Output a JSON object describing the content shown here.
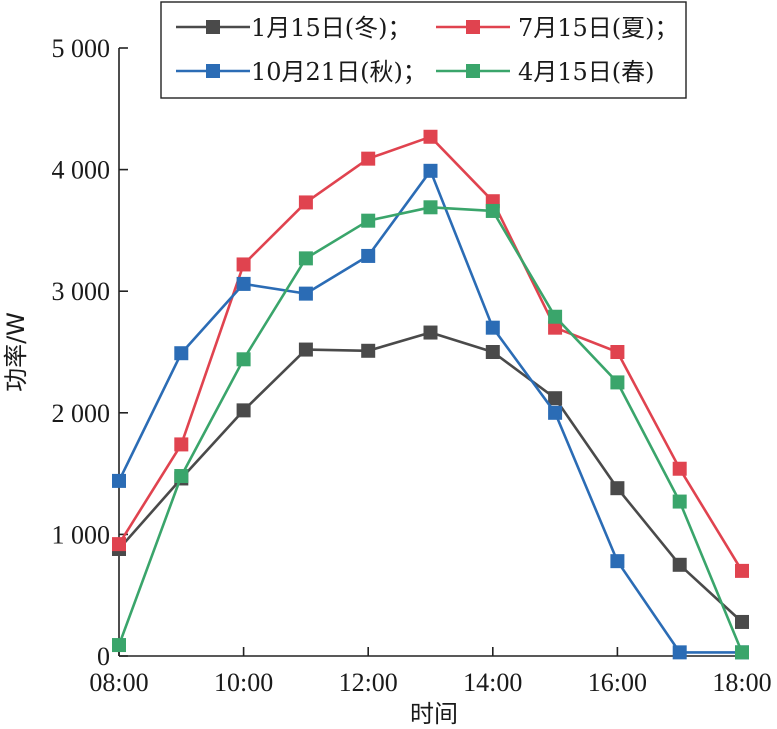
{
  "chart_data": {
    "type": "line",
    "title": "",
    "xlabel": "时间",
    "ylabel": "功率/W",
    "x": [
      "08:00",
      "09:00",
      "10:00",
      "11:00",
      "12:00",
      "13:00",
      "14:00",
      "15:00",
      "16:00",
      "17:00",
      "18:00"
    ],
    "x_ticks": [
      "08:00",
      "10:00",
      "12:00",
      "14:00",
      "16:00",
      "18:00"
    ],
    "y_ticks": [
      "0",
      "1 000",
      "2 000",
      "3 000",
      "4 000",
      "5 000"
    ],
    "ylim": [
      0,
      5000
    ],
    "grid": false,
    "legend_position": "top",
    "series": [
      {
        "name": "1月15日(冬)；",
        "color": "#4a4a4a",
        "values": [
          880,
          1460,
          2020,
          2520,
          2510,
          2660,
          2500,
          2120,
          1380,
          750,
          280
        ]
      },
      {
        "name": "7月15日(夏)；",
        "color": "#e0434f",
        "values": [
          920,
          1740,
          3220,
          3730,
          4090,
          4270,
          3740,
          2700,
          2500,
          1540,
          700
        ]
      },
      {
        "name": "10月21日(秋)；",
        "color": "#2b6cb5",
        "values": [
          1440,
          2490,
          3060,
          2980,
          3290,
          3990,
          2700,
          2000,
          780,
          30,
          30
        ]
      },
      {
        "name": "4月15日(春)",
        "color": "#3aa56b",
        "values": [
          90,
          1480,
          2440,
          3270,
          3580,
          3690,
          3660,
          2790,
          2250,
          1270,
          30
        ]
      }
    ]
  }
}
